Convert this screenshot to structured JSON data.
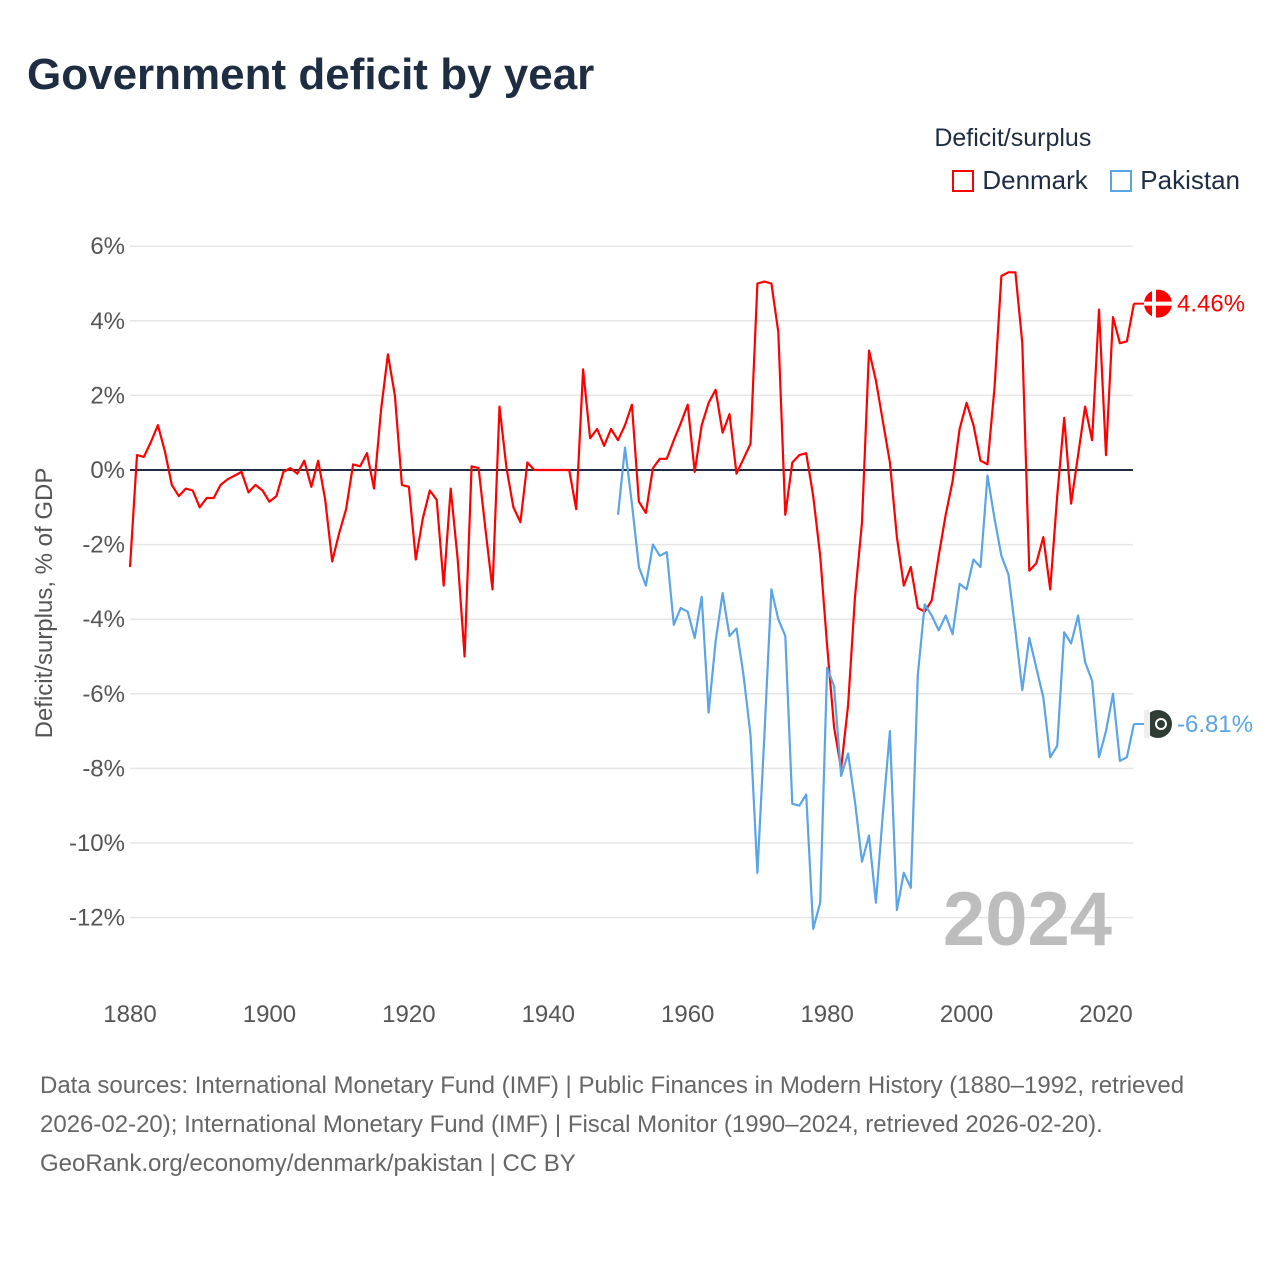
{
  "title": "Government deficit by year",
  "legend": {
    "title": "Deficit/surplus",
    "items": [
      {
        "name": "Denmark",
        "color": "#ff0000"
      },
      {
        "name": "Pakistan",
        "color": "#5ba4e6"
      }
    ]
  },
  "watermark_year": "2024",
  "footer": {
    "sources": "Data sources: International Monetary Fund (IMF) | Public Finances in Modern History (1880–1992, retrieved 2026-02-20); International Monetary Fund (IMF) | Fiscal Monitor (1990–2024, retrieved 2026-02-20).",
    "credit": "GeoRank.org/economy/denmark/pakistan | CC BY"
  },
  "chart_data": {
    "type": "line",
    "title": "Government deficit by year",
    "xlabel": "",
    "ylabel": "Deficit/surplus, % of GDP",
    "xlim": [
      1880,
      2024
    ],
    "ylim": [
      -12,
      6
    ],
    "xticks": [
      1880,
      1900,
      1920,
      1940,
      1960,
      1980,
      2000,
      2020
    ],
    "xtick_labels": [
      "1880",
      "1900",
      "1920",
      "1940",
      "1960",
      "1980",
      "2000",
      "2020"
    ],
    "yticks": [
      6,
      4,
      2,
      0,
      -2,
      -4,
      -6,
      -8,
      -10,
      -12
    ],
    "ytick_labels": [
      "6%",
      "4%",
      "2%",
      "0%",
      "-2%",
      "-4%",
      "-6%",
      "-8%",
      "-10%",
      "-12%"
    ],
    "grid": true,
    "legend_position": "top-right",
    "series": [
      {
        "name": "Denmark",
        "color": "#ff0000",
        "start_year": 1880,
        "end_label": "4.46%",
        "values": [
          -2.6,
          0.4,
          0.35,
          0.75,
          1.2,
          0.5,
          -0.4,
          -0.7,
          -0.5,
          -0.55,
          -1.0,
          -0.75,
          -0.75,
          -0.4,
          -0.25,
          -0.15,
          -0.05,
          -0.6,
          -0.4,
          -0.55,
          -0.85,
          -0.7,
          -0.05,
          0.05,
          -0.1,
          0.25,
          -0.45,
          0.25,
          -0.8,
          -2.45,
          -1.7,
          -1.05,
          0.15,
          0.1,
          0.45,
          -0.5,
          1.6,
          3.1,
          2.0,
          -0.4,
          -0.45,
          -2.4,
          -1.3,
          -0.55,
          -0.8,
          -3.1,
          -0.5,
          -2.4,
          -5.0,
          0.1,
          0.05,
          -1.6,
          -3.2,
          1.7,
          0.05,
          -1.0,
          -1.4,
          0.2,
          0.0,
          0.0,
          0.0,
          0.0,
          0.0,
          0.0,
          -1.05,
          2.7,
          0.85,
          1.1,
          0.65,
          1.1,
          0.8,
          1.2,
          1.75,
          -0.85,
          -1.15,
          0.05,
          0.3,
          0.3,
          0.8,
          1.25,
          1.75,
          -0.05,
          1.2,
          1.8,
          2.15,
          1.0,
          1.5,
          -0.1,
          0.3,
          0.7,
          5.0,
          5.05,
          5.0,
          3.7,
          -1.2,
          0.2,
          0.4,
          0.45,
          -0.7,
          -2.3,
          -4.7,
          -6.9,
          -8.0,
          -6.3,
          -3.4,
          -1.4,
          3.2,
          2.4,
          1.3,
          0.2,
          -1.8,
          -3.1,
          -2.6,
          -3.7,
          -3.8,
          -3.5,
          -2.3,
          -1.2,
          -0.3,
          1.1,
          1.8,
          1.2,
          0.25,
          0.15,
          2.2,
          5.2,
          5.3,
          5.3,
          3.4,
          -2.7,
          -2.5,
          -1.8,
          -3.2,
          -0.7,
          1.4,
          -0.9,
          0.4,
          1.7,
          0.8,
          4.3,
          0.4,
          4.1,
          3.4,
          3.45,
          4.46
        ]
      },
      {
        "name": "Pakistan",
        "color": "#5ba4e6",
        "start_year": 1950,
        "end_label": "-6.81%",
        "values": [
          -1.2,
          0.6,
          -0.9,
          -2.6,
          -3.1,
          -2.0,
          -2.3,
          -2.2,
          -4.15,
          -3.7,
          -3.8,
          -4.5,
          -3.4,
          -6.5,
          -4.6,
          -3.3,
          -4.45,
          -4.25,
          -5.5,
          -7.1,
          -10.8,
          -7.1,
          -3.2,
          -4.0,
          -4.45,
          -8.95,
          -9.0,
          -8.7,
          -12.3,
          -11.6,
          -5.3,
          -5.8,
          -8.2,
          -7.6,
          -8.9,
          -10.5,
          -9.8,
          -11.6,
          -9.2,
          -7.0,
          -11.8,
          -10.8,
          -11.2,
          -5.5,
          -3.6,
          -3.9,
          -4.3,
          -3.9,
          -4.4,
          -3.05,
          -3.2,
          -2.4,
          -2.6,
          -0.15,
          -1.3,
          -2.3,
          -2.8,
          -4.3,
          -5.9,
          -4.5,
          -5.3,
          -6.1,
          -7.7,
          -7.4,
          -4.35,
          -4.65,
          -3.9,
          -5.15,
          -5.65,
          -7.7,
          -7.0,
          -6.0,
          -7.8,
          -7.7,
          -6.81
        ]
      }
    ]
  }
}
